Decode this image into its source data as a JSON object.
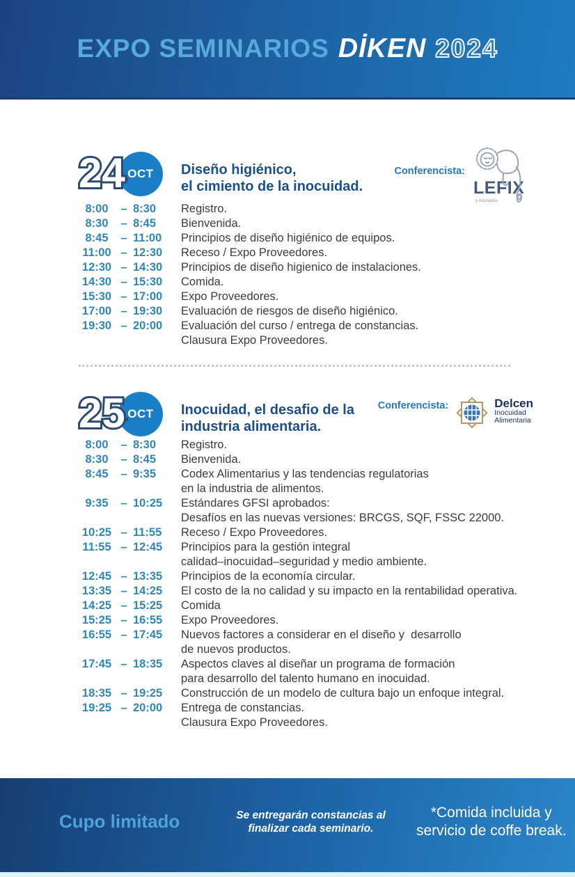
{
  "header": {
    "title_expo": "EXPO SEMINARIOS",
    "title_brand": "DİKEN",
    "title_year": "2024"
  },
  "time_separator": "–",
  "days": [
    {
      "day_number": "24",
      "month": "OCT",
      "title": "Diseño higiénico,\nel cimiento de la inocuidad.",
      "speaker_label": "Conferencista:",
      "speaker_name": "LEFIX",
      "speaker_tagline": "y Asociados",
      "schedule": [
        {
          "start": "8:00",
          "end": "8:30",
          "activity": "Registro."
        },
        {
          "start": "8:30",
          "end": "8:45",
          "activity": "Bienvenida."
        },
        {
          "start": "8:45",
          "end": "11:00",
          "activity": "Principios de diseño higiénico de equipos."
        },
        {
          "start": "11:00",
          "end": "12:30",
          "activity": "Receso / Expo Proveedores."
        },
        {
          "start": "12:30",
          "end": "14:30",
          "activity": "Principios de diseño higienico de instalaciones."
        },
        {
          "start": "14:30",
          "end": "15:30",
          "activity": "Comida."
        },
        {
          "start": "15:30",
          "end": "17:00",
          "activity": "Expo Proveedores."
        },
        {
          "start": "17:00",
          "end": "19:30",
          "activity": "Evaluación de riesgos de diseño higiénico."
        },
        {
          "start": "19:30",
          "end": "20:00",
          "activity": "Evaluación del curso / entrega de constancias.\nClausura Expo Proveedores."
        }
      ]
    },
    {
      "day_number": "25",
      "month": "OCT",
      "title": "Inocuidad, el desafio de la\nindustria alimentaria.",
      "speaker_label": "Conferencista:",
      "speaker_name": "Delcen",
      "speaker_sub1": "Inocuidad",
      "speaker_sub2": "Alimentaria",
      "schedule": [
        {
          "start": "8:00",
          "end": "8:30",
          "activity": "Registro."
        },
        {
          "start": "8:30",
          "end": "8:45",
          "activity": "Bienvenida."
        },
        {
          "start": "8:45",
          "end": "9:35",
          "activity": "Codex Alimentarius y las tendencias regulatorias\nen la industria de alimentos."
        },
        {
          "start": "9:35",
          "end": "10:25",
          "activity": "Estándares GFSI aprobados:\nDesafíos en las nuevas versiones: BRCGS, SQF, FSSC 22000."
        },
        {
          "start": "10:25",
          "end": "11:55",
          "activity": "Receso / Expo Proveedores."
        },
        {
          "start": "11:55",
          "end": "12:45",
          "activity": "Principios para la gestión integral\ncalidad–inocuidad–seguridad y medio ambiente."
        },
        {
          "start": "12:45",
          "end": "13:35",
          "activity": "Principios de la economía circular."
        },
        {
          "start": "13:35",
          "end": "14:25",
          "activity": "El costo de la no calidad y su impacto en la rentabilidad operativa."
        },
        {
          "start": "14:25",
          "end": "15:25",
          "activity": "Comida"
        },
        {
          "start": "15:25",
          "end": "16:55",
          "activity": "Expo Proveedores."
        },
        {
          "start": "16:55",
          "end": "17:45",
          "activity": "Nuevos factores a considerar en el diseño y  desarrollo\nde nuevos productos."
        },
        {
          "start": "17:45",
          "end": "18:35",
          "activity": "Aspectos claves al diseñar un programa de formación\npara desarrollo del talento humano en inocuidad."
        },
        {
          "start": "18:35",
          "end": "19:25",
          "activity": "Construcción de un modelo de cultura bajo un enfoque integral."
        },
        {
          "start": "19:25",
          "end": "20:00",
          "activity": "Entrega de constancias.\nClausura Expo Proveedores."
        }
      ]
    }
  ],
  "footer": {
    "left": "Cupo limitado",
    "center": "Se entregarán constancias al\nfinalizar cada seminario.",
    "right": "*Comida incluida y\nservicio de coffe break."
  },
  "colors": {
    "accent_light_blue": "#4FA8DC",
    "time_blue": "#2E87B6",
    "title_navy": "#1C4E8D",
    "badge_circle_blue": "#1A7FC6",
    "header_gradient_left": "#1C4384",
    "header_gradient_right": "#1E7CC2"
  }
}
